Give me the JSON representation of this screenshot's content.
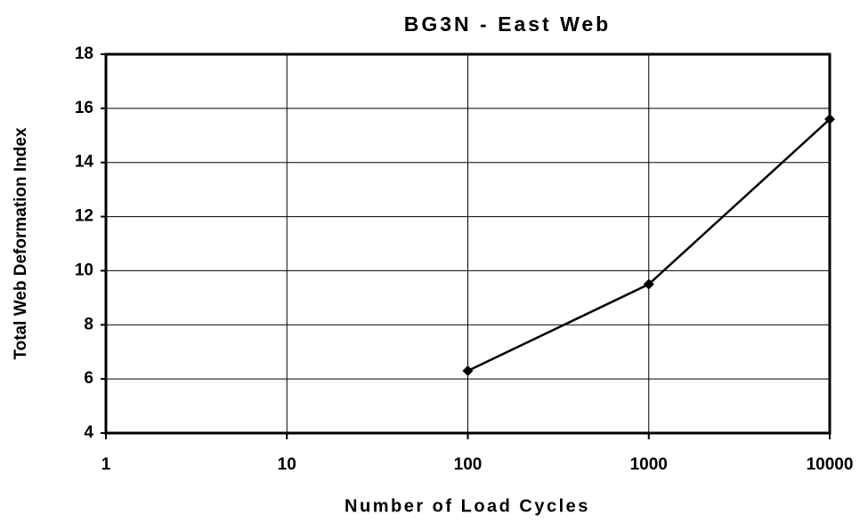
{
  "chart_data": {
    "type": "line",
    "title": "BG3N - East Web",
    "xlabel": "Number of Load Cycles",
    "ylabel": "Total Web Deformation Index",
    "x": [
      100,
      1000,
      10000
    ],
    "values": [
      6.3,
      9.5,
      15.6
    ],
    "color": "#000000",
    "xscale": "log",
    "xlim": [
      1,
      10000
    ],
    "xticks": [
      1,
      10,
      100,
      1000,
      10000
    ],
    "ylim": [
      4,
      18
    ],
    "yticks": [
      4,
      6,
      8,
      10,
      12,
      14,
      16,
      18
    ],
    "grid": true
  }
}
